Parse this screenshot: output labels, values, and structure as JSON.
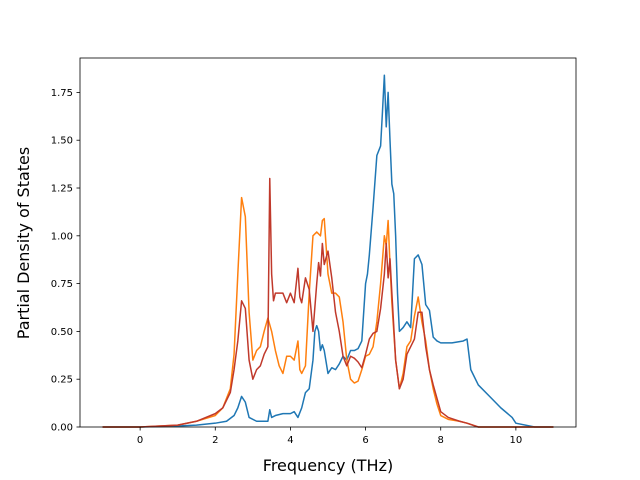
{
  "chart_data": {
    "type": "line",
    "xlabel": "Frequency (THz)",
    "ylabel": "Partial Density of States",
    "xlim": [
      -1.6,
      11.6
    ],
    "ylim": [
      0,
      1.93
    ],
    "xticks": [
      "0",
      "2",
      "4",
      "6",
      "8",
      "10"
    ],
    "yticks": [
      "0.00",
      "0.25",
      "0.50",
      "0.75",
      "1.00",
      "1.25",
      "1.50",
      "1.75"
    ],
    "grid": false,
    "legend": "none",
    "series": [
      {
        "color": "#1f77b4",
        "x": [
          -1,
          0,
          1,
          1.5,
          2,
          2.3,
          2.5,
          2.6,
          2.7,
          2.8,
          2.9,
          3.1,
          3.4,
          3.45,
          3.5,
          3.6,
          3.8,
          4.0,
          4.1,
          4.2,
          4.3,
          4.4,
          4.5,
          4.6,
          4.65,
          4.7,
          4.75,
          4.8,
          4.85,
          4.9,
          5.0,
          5.1,
          5.2,
          5.3,
          5.4,
          5.5,
          5.6,
          5.7,
          5.8,
          5.9,
          6.0,
          6.05,
          6.1,
          6.2,
          6.3,
          6.4,
          6.45,
          6.5,
          6.55,
          6.6,
          6.65,
          6.7,
          6.75,
          6.8,
          6.85,
          6.9,
          7.0,
          7.1,
          7.2,
          7.3,
          7.4,
          7.5,
          7.6,
          7.7,
          7.8,
          7.9,
          8.0,
          8.3,
          8.6,
          8.7,
          8.8,
          9.0,
          9.3,
          9.6,
          9.9,
          10.0,
          10.5,
          11.0
        ],
        "y": [
          0.0,
          0.0,
          0.005,
          0.01,
          0.02,
          0.03,
          0.06,
          0.1,
          0.16,
          0.13,
          0.05,
          0.03,
          0.03,
          0.09,
          0.05,
          0.06,
          0.07,
          0.07,
          0.08,
          0.05,
          0.1,
          0.18,
          0.2,
          0.35,
          0.5,
          0.53,
          0.5,
          0.4,
          0.43,
          0.4,
          0.28,
          0.31,
          0.3,
          0.33,
          0.37,
          0.35,
          0.4,
          0.4,
          0.41,
          0.45,
          0.75,
          0.8,
          0.9,
          1.15,
          1.42,
          1.47,
          1.65,
          1.84,
          1.57,
          1.75,
          1.5,
          1.27,
          1.22,
          1.0,
          0.7,
          0.5,
          0.52,
          0.55,
          0.52,
          0.88,
          0.9,
          0.85,
          0.64,
          0.61,
          0.47,
          0.45,
          0.44,
          0.44,
          0.45,
          0.46,
          0.3,
          0.22,
          0.16,
          0.1,
          0.05,
          0.02,
          0.0,
          0.0
        ]
      },
      {
        "color": "#ff7f0e",
        "x": [
          -1,
          0,
          1,
          1.5,
          2,
          2.2,
          2.4,
          2.5,
          2.6,
          2.7,
          2.8,
          2.9,
          3.0,
          3.1,
          3.2,
          3.3,
          3.4,
          3.5,
          3.6,
          3.7,
          3.8,
          3.9,
          4.0,
          4.1,
          4.2,
          4.25,
          4.3,
          4.4,
          4.5,
          4.6,
          4.7,
          4.8,
          4.85,
          4.9,
          5.0,
          5.1,
          5.2,
          5.3,
          5.4,
          5.5,
          5.6,
          5.7,
          5.8,
          5.9,
          6.0,
          6.1,
          6.2,
          6.3,
          6.4,
          6.5,
          6.55,
          6.6,
          6.65,
          6.7,
          6.8,
          6.9,
          7.0,
          7.1,
          7.2,
          7.3,
          7.4,
          7.5,
          7.6,
          7.7,
          7.8,
          7.9,
          8.0,
          8.2,
          8.5,
          8.7,
          9.0,
          10.0,
          11.0
        ],
        "y": [
          0.0,
          0.0,
          0.01,
          0.03,
          0.06,
          0.1,
          0.2,
          0.38,
          0.8,
          1.2,
          1.1,
          0.6,
          0.35,
          0.4,
          0.42,
          0.5,
          0.57,
          0.5,
          0.4,
          0.32,
          0.28,
          0.37,
          0.37,
          0.35,
          0.45,
          0.3,
          0.28,
          0.32,
          0.7,
          1.0,
          1.02,
          1.0,
          1.08,
          1.09,
          0.8,
          0.7,
          0.7,
          0.68,
          0.55,
          0.35,
          0.25,
          0.23,
          0.24,
          0.3,
          0.37,
          0.38,
          0.42,
          0.55,
          0.75,
          1.0,
          0.95,
          1.08,
          0.85,
          0.65,
          0.35,
          0.2,
          0.28,
          0.42,
          0.45,
          0.58,
          0.68,
          0.55,
          0.45,
          0.3,
          0.2,
          0.12,
          0.06,
          0.04,
          0.03,
          0.02,
          0.0,
          0.0,
          0.0
        ]
      },
      {
        "color": "#c0392b",
        "x": [
          -1,
          0,
          1,
          1.5,
          2,
          2.2,
          2.4,
          2.5,
          2.6,
          2.7,
          2.8,
          2.9,
          3.0,
          3.1,
          3.2,
          3.3,
          3.4,
          3.45,
          3.5,
          3.55,
          3.6,
          3.7,
          3.8,
          3.9,
          4.0,
          4.1,
          4.2,
          4.25,
          4.3,
          4.4,
          4.5,
          4.6,
          4.7,
          4.75,
          4.8,
          4.85,
          4.9,
          5.0,
          5.1,
          5.2,
          5.3,
          5.4,
          5.5,
          5.6,
          5.7,
          5.8,
          5.9,
          6.0,
          6.1,
          6.2,
          6.3,
          6.4,
          6.5,
          6.55,
          6.6,
          6.65,
          6.7,
          6.8,
          6.9,
          7.0,
          7.1,
          7.2,
          7.3,
          7.4,
          7.5,
          7.6,
          7.7,
          7.8,
          7.9,
          8.0,
          8.2,
          8.5,
          8.7,
          9.0,
          10.0,
          11.0
        ],
        "y": [
          0.0,
          0.0,
          0.01,
          0.03,
          0.07,
          0.1,
          0.18,
          0.3,
          0.45,
          0.66,
          0.62,
          0.35,
          0.25,
          0.3,
          0.32,
          0.38,
          0.42,
          1.3,
          0.8,
          0.66,
          0.7,
          0.7,
          0.7,
          0.65,
          0.7,
          0.65,
          0.83,
          0.68,
          0.65,
          0.78,
          0.72,
          0.5,
          0.75,
          0.86,
          0.79,
          0.96,
          0.85,
          0.92,
          0.78,
          0.6,
          0.5,
          0.37,
          0.32,
          0.37,
          0.36,
          0.34,
          0.31,
          0.38,
          0.46,
          0.49,
          0.5,
          0.62,
          0.8,
          0.96,
          0.78,
          0.88,
          0.7,
          0.35,
          0.2,
          0.25,
          0.38,
          0.42,
          0.46,
          0.6,
          0.6,
          0.42,
          0.3,
          0.22,
          0.15,
          0.08,
          0.05,
          0.03,
          0.02,
          0.0,
          0.0,
          0.0
        ]
      }
    ]
  }
}
